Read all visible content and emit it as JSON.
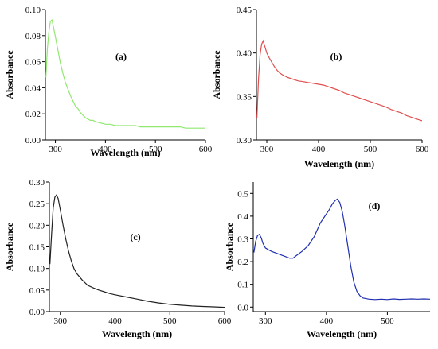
{
  "chart_data": [
    {
      "type": "line",
      "panel_label": "(a)",
      "xlabel": "Wavelength (nm)",
      "ylabel": "Absorbance",
      "xlim": [
        280,
        600
      ],
      "ylim": [
        0.0,
        0.1
      ],
      "xticks": [
        300,
        400,
        500,
        600
      ],
      "yticks": [
        0.0,
        0.02,
        0.04,
        0.06,
        0.08,
        0.1
      ],
      "xtick_labels": [
        "300",
        "400",
        "500",
        "600"
      ],
      "ytick_labels": [
        "0.00",
        "0.02",
        "0.04",
        "0.06",
        "0.08",
        "0.10"
      ],
      "grid": false,
      "color": "#90e870",
      "series": [
        {
          "x": [
            281,
            284,
            287,
            290,
            293,
            296,
            300,
            305,
            310,
            315,
            320,
            325,
            330,
            335,
            340,
            345,
            350,
            355,
            360,
            365,
            370,
            375,
            380,
            390,
            400,
            410,
            420,
            430,
            440,
            450,
            460,
            470,
            480,
            490,
            500,
            510,
            520,
            530,
            540,
            550,
            560,
            570,
            580,
            590,
            600
          ],
          "y": [
            0.048,
            0.07,
            0.083,
            0.091,
            0.092,
            0.087,
            0.079,
            0.069,
            0.059,
            0.051,
            0.044,
            0.039,
            0.034,
            0.03,
            0.026,
            0.024,
            0.021,
            0.019,
            0.017,
            0.016,
            0.015,
            0.015,
            0.014,
            0.013,
            0.012,
            0.012,
            0.011,
            0.011,
            0.011,
            0.011,
            0.011,
            0.01,
            0.01,
            0.01,
            0.01,
            0.01,
            0.01,
            0.01,
            0.01,
            0.01,
            0.009,
            0.009,
            0.009,
            0.009,
            0.009
          ]
        }
      ]
    },
    {
      "type": "line",
      "panel_label": "(b)",
      "xlabel": "Wavelength (nm)",
      "ylabel": "Absorbance",
      "xlim": [
        280,
        600
      ],
      "ylim": [
        0.3,
        0.45
      ],
      "xticks": [
        300,
        400,
        500,
        600
      ],
      "yticks": [
        0.3,
        0.35,
        0.4,
        0.45
      ],
      "xtick_labels": [
        "300",
        "400",
        "500",
        "600"
      ],
      "ytick_labels": [
        "0.30",
        "0.35",
        "0.40",
        "0.45"
      ],
      "grid": false,
      "color": "#e05050",
      "series": [
        {
          "x": [
            281,
            284,
            287,
            290,
            293,
            296,
            300,
            305,
            310,
            315,
            320,
            325,
            330,
            340,
            350,
            360,
            370,
            380,
            390,
            400,
            410,
            420,
            430,
            440,
            450,
            460,
            470,
            480,
            490,
            500,
            510,
            520,
            530,
            540,
            550,
            560,
            570,
            580,
            590,
            600
          ],
          "y": [
            0.325,
            0.37,
            0.398,
            0.41,
            0.414,
            0.408,
            0.4,
            0.394,
            0.389,
            0.384,
            0.38,
            0.377,
            0.375,
            0.372,
            0.37,
            0.368,
            0.367,
            0.366,
            0.365,
            0.364,
            0.363,
            0.361,
            0.359,
            0.357,
            0.354,
            0.352,
            0.35,
            0.348,
            0.346,
            0.344,
            0.342,
            0.34,
            0.338,
            0.335,
            0.333,
            0.331,
            0.328,
            0.326,
            0.324,
            0.322
          ]
        }
      ]
    },
    {
      "type": "line",
      "panel_label": "(c)",
      "xlabel": "Wavelength (nm)",
      "ylabel": "Absorbance",
      "xlim": [
        280,
        600
      ],
      "ylim": [
        0.0,
        0.3
      ],
      "xticks": [
        300,
        400,
        500,
        600
      ],
      "yticks": [
        0.0,
        0.05,
        0.1,
        0.15,
        0.2,
        0.25,
        0.3
      ],
      "xtick_labels": [
        "300",
        "400",
        "500",
        "600"
      ],
      "ytick_labels": [
        "0.00",
        "0.05",
        "0.10",
        "0.15",
        "0.20",
        "0.25",
        "0.30"
      ],
      "grid": false,
      "color": "#222222",
      "series": [
        {
          "x": [
            281,
            284,
            287,
            290,
            293,
            296,
            300,
            305,
            310,
            315,
            320,
            325,
            330,
            340,
            350,
            360,
            370,
            380,
            390,
            400,
            420,
            440,
            460,
            480,
            500,
            520,
            540,
            560,
            580,
            600
          ],
          "y": [
            0.11,
            0.18,
            0.24,
            0.265,
            0.27,
            0.262,
            0.235,
            0.2,
            0.168,
            0.14,
            0.118,
            0.1,
            0.088,
            0.073,
            0.061,
            0.055,
            0.05,
            0.046,
            0.042,
            0.039,
            0.034,
            0.029,
            0.024,
            0.02,
            0.017,
            0.015,
            0.013,
            0.012,
            0.011,
            0.01
          ]
        }
      ]
    },
    {
      "type": "line",
      "panel_label": "(d)",
      "xlabel": "Wavelength (nm)",
      "ylabel": "Absorbance",
      "xlim": [
        280,
        570
      ],
      "ylim": [
        -0.02,
        0.55
      ],
      "xticks": [
        300,
        400,
        500
      ],
      "yticks": [
        0.0,
        0.1,
        0.2,
        0.3,
        0.4,
        0.5
      ],
      "xtick_labels": [
        "300",
        "400",
        "500"
      ],
      "ytick_labels": [
        "0.0",
        "0.1",
        "0.2",
        "0.3",
        "0.4",
        "0.5"
      ],
      "grid": false,
      "color": "#2030b0",
      "series": [
        {
          "x": [
            281,
            284,
            287,
            290,
            293,
            296,
            300,
            305,
            310,
            320,
            330,
            340,
            345,
            350,
            360,
            370,
            380,
            390,
            400,
            405,
            410,
            415,
            418,
            422,
            426,
            430,
            435,
            440,
            445,
            450,
            455,
            460,
            470,
            480,
            490,
            500,
            510,
            520,
            530,
            540,
            550,
            560,
            570
          ],
          "y": [
            0.24,
            0.29,
            0.315,
            0.32,
            0.305,
            0.28,
            0.26,
            0.252,
            0.245,
            0.235,
            0.225,
            0.215,
            0.215,
            0.225,
            0.245,
            0.27,
            0.31,
            0.37,
            0.41,
            0.43,
            0.455,
            0.47,
            0.475,
            0.46,
            0.42,
            0.36,
            0.27,
            0.18,
            0.11,
            0.07,
            0.05,
            0.04,
            0.035,
            0.033,
            0.035,
            0.033,
            0.036,
            0.034,
            0.035,
            0.036,
            0.035,
            0.036,
            0.035
          ]
        }
      ]
    }
  ]
}
